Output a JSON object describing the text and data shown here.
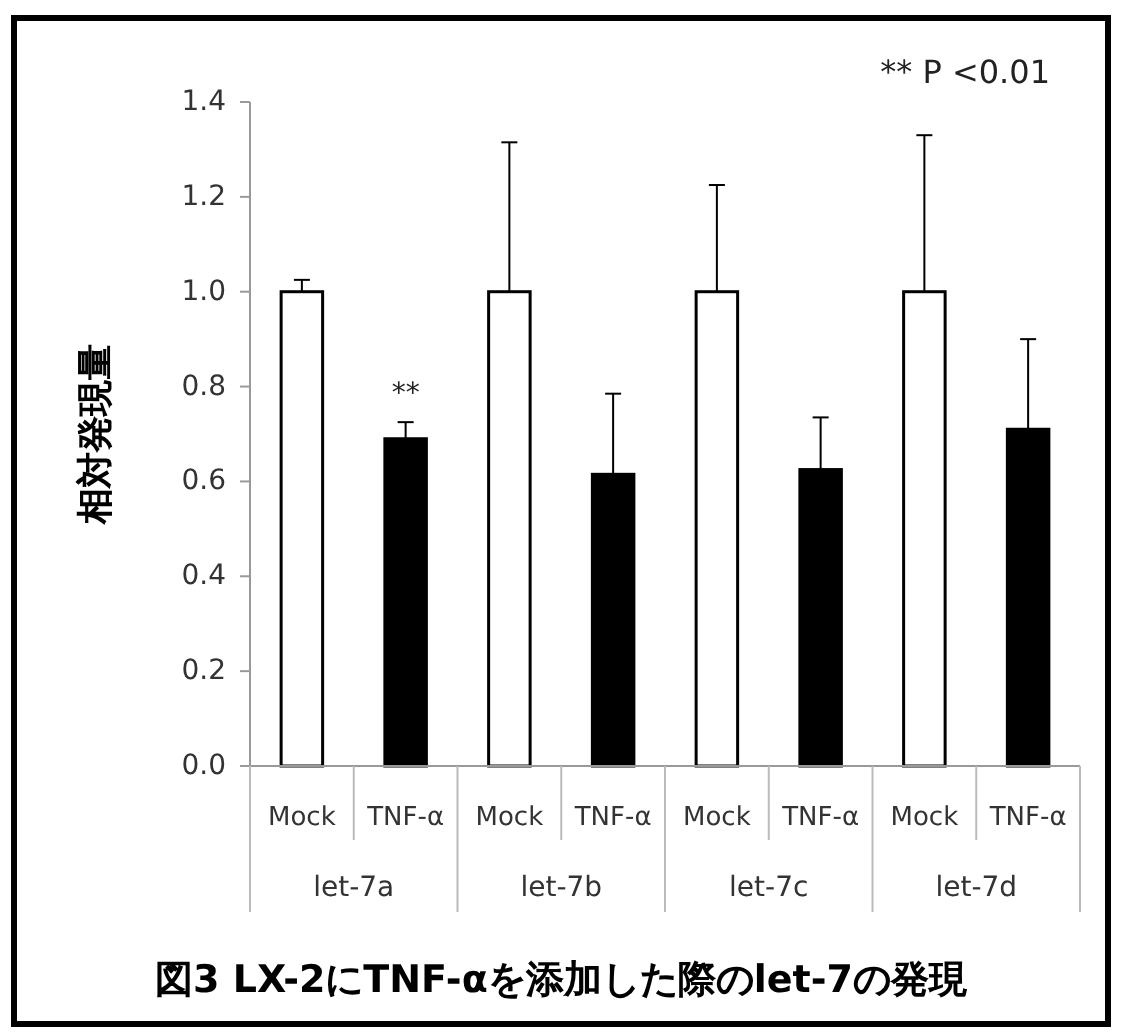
{
  "chart_data": {
    "type": "bar",
    "title": "図3 LX-2にTNF-αを添加した際のlet-7の発現",
    "ylabel": "相対発現量",
    "categories": [
      "let-7a",
      "let-7b",
      "let-7c",
      "let-7d"
    ],
    "series": [
      {
        "name": "Mock",
        "color": "#ffffff",
        "values": [
          1.0,
          1.0,
          1.0,
          1.0
        ],
        "errors": [
          [
            1.0,
            1.025
          ],
          [
            1.0,
            1.315
          ],
          [
            1.0,
            1.225
          ],
          [
            1.0,
            1.33
          ]
        ]
      },
      {
        "name": "TNF-α",
        "color": "#000000",
        "values": [
          0.69,
          0.615,
          0.625,
          0.71
        ],
        "errors": [
          [
            0.69,
            0.725
          ],
          [
            0.615,
            0.785
          ],
          [
            0.625,
            0.735
          ],
          [
            0.71,
            0.9
          ]
        ]
      }
    ],
    "ylim": [
      0,
      1.4
    ],
    "yticks": [
      {
        "value": 0,
        "label": "0.0"
      },
      {
        "value": 0.2,
        "label": "0.2"
      },
      {
        "value": 0.4,
        "label": "0.4"
      },
      {
        "value": 0.6,
        "label": "0.6"
      },
      {
        "value": 0.8,
        "label": "0.8"
      },
      {
        "value": 1.0,
        "label": "1.0"
      },
      {
        "value": 1.2,
        "label": "1.2"
      },
      {
        "value": 1.4,
        "label": "1.4"
      }
    ],
    "annotations": [
      "** P <0.01",
      "**"
    ],
    "grid": false
  }
}
